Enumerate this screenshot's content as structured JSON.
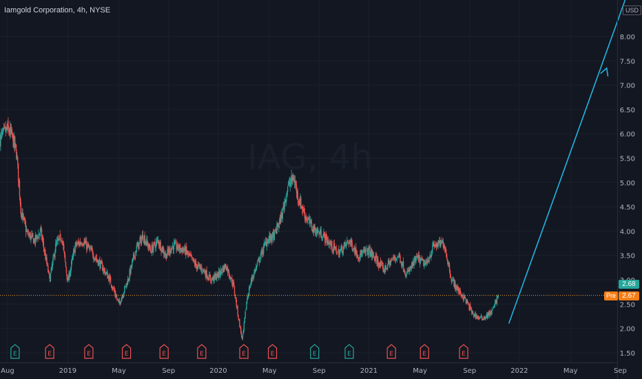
{
  "header": {
    "title": "Iamgold Corporation, 4h, NYSE",
    "currency": "USD"
  },
  "watermark": {
    "symbol": "IAG, 4h"
  },
  "price_labels": {
    "last": "2.68",
    "pre_label": "Pre",
    "pre": "2.67"
  },
  "colors": {
    "background": "#131722",
    "up": "#26a69a",
    "down": "#ef5350",
    "arrow": "#22b5e0",
    "price_line": "#f0a030",
    "pre_tag": "#f57f17",
    "axis_text": "#b2b5be"
  },
  "earnings_markers": [
    {
      "label": "E",
      "t": 2018.65,
      "type": "positive"
    },
    {
      "label": "E",
      "t": 2018.88,
      "type": "negative"
    },
    {
      "label": "E",
      "t": 2019.14,
      "type": "negative"
    },
    {
      "label": "E",
      "t": 2019.39,
      "type": "negative"
    },
    {
      "label": "E",
      "t": 2019.64,
      "type": "negative"
    },
    {
      "label": "E",
      "t": 2019.89,
      "type": "negative"
    },
    {
      "label": "E",
      "t": 2020.17,
      "type": "negative"
    },
    {
      "label": "E",
      "t": 2020.36,
      "type": "negative"
    },
    {
      "label": "E",
      "t": 2020.64,
      "type": "positive"
    },
    {
      "label": "E",
      "t": 2020.87,
      "type": "positive"
    },
    {
      "label": "E",
      "t": 2021.15,
      "type": "negative"
    },
    {
      "label": "E",
      "t": 2021.37,
      "type": "negative"
    },
    {
      "label": "E",
      "t": 2021.63,
      "type": "negative"
    }
  ],
  "chart_data": {
    "type": "candlestick",
    "title": "Iamgold Corporation, 4h, NYSE",
    "ylim": [
      1.3,
      8.75
    ],
    "xlim": [
      2018.55,
      2022.65
    ],
    "y_ticks": [
      1.5,
      2.0,
      2.5,
      3.0,
      3.5,
      4.0,
      4.5,
      5.0,
      5.5,
      6.0,
      6.5,
      7.0,
      7.5,
      8.0
    ],
    "x_ticks": [
      {
        "label": "Aug",
        "t": 2018.6
      },
      {
        "label": "2019",
        "t": 2019.0
      },
      {
        "label": "May",
        "t": 2019.34
      },
      {
        "label": "Sep",
        "t": 2019.67
      },
      {
        "label": "2020",
        "t": 2020.0
      },
      {
        "label": "May",
        "t": 2020.34
      },
      {
        "label": "Sep",
        "t": 2020.67
      },
      {
        "label": "2021",
        "t": 2021.0
      },
      {
        "label": "May",
        "t": 2021.34
      },
      {
        "label": "Sep",
        "t": 2021.67
      },
      {
        "label": "2022",
        "t": 2022.0
      },
      {
        "label": "May",
        "t": 2022.34
      },
      {
        "label": "Sep",
        "t": 2022.67
      }
    ],
    "price_path": [
      [
        2018.55,
        5.9
      ],
      [
        2018.6,
        6.1
      ],
      [
        2018.63,
        5.95
      ],
      [
        2018.66,
        5.6
      ],
      [
        2018.69,
        4.4
      ],
      [
        2018.73,
        3.95
      ],
      [
        2018.78,
        3.8
      ],
      [
        2018.82,
        4.0
      ],
      [
        2018.85,
        3.5
      ],
      [
        2018.88,
        3.0
      ],
      [
        2018.92,
        3.7
      ],
      [
        2018.96,
        3.9
      ],
      [
        2019.0,
        2.95
      ],
      [
        2019.05,
        3.7
      ],
      [
        2019.1,
        3.8
      ],
      [
        2019.15,
        3.6
      ],
      [
        2019.22,
        3.3
      ],
      [
        2019.28,
        3.0
      ],
      [
        2019.34,
        2.5
      ],
      [
        2019.4,
        3.0
      ],
      [
        2019.45,
        3.6
      ],
      [
        2019.5,
        3.9
      ],
      [
        2019.55,
        3.6
      ],
      [
        2019.6,
        3.8
      ],
      [
        2019.65,
        3.5
      ],
      [
        2019.7,
        3.7
      ],
      [
        2019.78,
        3.6
      ],
      [
        2019.85,
        3.3
      ],
      [
        2019.9,
        3.2
      ],
      [
        2019.95,
        3.0
      ],
      [
        2020.0,
        3.1
      ],
      [
        2020.05,
        3.3
      ],
      [
        2020.1,
        2.9
      ],
      [
        2020.14,
        2.1
      ],
      [
        2020.16,
        1.75
      ],
      [
        2020.19,
        2.6
      ],
      [
        2020.22,
        3.0
      ],
      [
        2020.27,
        3.4
      ],
      [
        2020.32,
        3.8
      ],
      [
        2020.37,
        3.9
      ],
      [
        2020.42,
        4.3
      ],
      [
        2020.46,
        4.9
      ],
      [
        2020.5,
        5.1
      ],
      [
        2020.53,
        4.7
      ],
      [
        2020.58,
        4.3
      ],
      [
        2020.63,
        4.05
      ],
      [
        2020.7,
        3.9
      ],
      [
        2020.75,
        3.7
      ],
      [
        2020.8,
        3.55
      ],
      [
        2020.87,
        3.8
      ],
      [
        2020.93,
        3.5
      ],
      [
        2021.0,
        3.6
      ],
      [
        2021.05,
        3.4
      ],
      [
        2021.1,
        3.2
      ],
      [
        2021.15,
        3.4
      ],
      [
        2021.2,
        3.5
      ],
      [
        2021.25,
        3.1
      ],
      [
        2021.32,
        3.45
      ],
      [
        2021.38,
        3.3
      ],
      [
        2021.43,
        3.7
      ],
      [
        2021.5,
        3.75
      ],
      [
        2021.55,
        3.0
      ],
      [
        2021.59,
        2.8
      ],
      [
        2021.64,
        2.6
      ],
      [
        2021.69,
        2.3
      ],
      [
        2021.74,
        2.2
      ],
      [
        2021.78,
        2.25
      ],
      [
        2021.82,
        2.35
      ],
      [
        2021.86,
        2.68
      ]
    ],
    "last_price": 2.68,
    "premarket_price": 2.67,
    "projection": {
      "from": [
        2021.93,
        2.1
      ],
      "to": [
        2022.58,
        7.35
      ],
      "extends_to": [
        2022.72,
        8.9
      ]
    }
  }
}
